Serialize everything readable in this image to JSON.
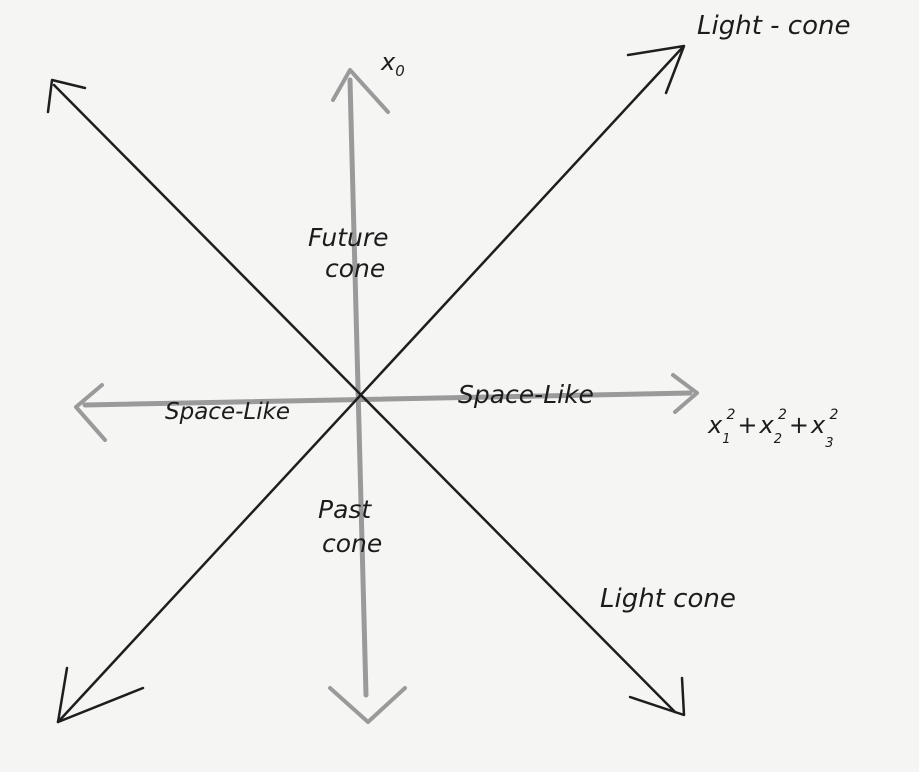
{
  "labels": {
    "time_axis": "x",
    "time_axis_sub": "0",
    "light_cone_top": "Light - cone",
    "light_cone_bottom": "Light cone",
    "future_line1": "Future",
    "future_line2": "cone",
    "past_line1": "Past",
    "past_line2": "cone",
    "space_like_left": "Space-Like",
    "space_like_right": "Space-Like",
    "space_axis": {
      "x": "x",
      "sub1": "1",
      "sub2": "2",
      "sub3": "3",
      "sup": "2",
      "plus": "+"
    }
  },
  "colors": {
    "background": "#f5f5f3",
    "ink": "#1e1e1e",
    "pencil": "#9a9a9a"
  }
}
